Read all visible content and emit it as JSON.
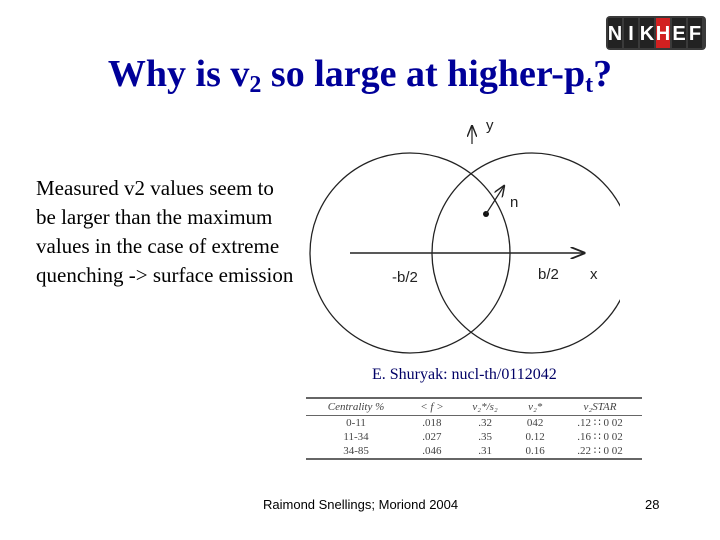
{
  "logo": {
    "text": "NIKHEF",
    "colors": {
      "tile": "#222222",
      "letter": "#ffffff",
      "highlight": "#d22020"
    }
  },
  "slide": {
    "title_main": "Why is v",
    "title_sub": "2",
    "title_mid": " so large at higher-p",
    "title_sub2": "t",
    "title_end": "?",
    "body": "Measured v2 values seem to be larger than the maximum values in the case of extreme quenching -> surface emission",
    "citation": "E. Shuryak: nucl-th/0112042",
    "footer": "Raimond Snellings; Moriond 2004",
    "page_number": "28"
  },
  "diagram": {
    "y_label": "y",
    "x_label": "x",
    "n_label": "n",
    "left_center_label": "-b/2",
    "right_center_label": "b/2"
  },
  "table": {
    "headers": [
      "Centrality %",
      "< f >",
      "v₂*/s₂",
      "v₂*",
      "v₂STAR"
    ],
    "rows": [
      [
        "0-11",
        ".018",
        ".32",
        "042",
        ".12 ∷ 0 02"
      ],
      [
        "11-34",
        ".027",
        ".35",
        "0.12",
        ".16 ∷ 0 02"
      ],
      [
        "34-85",
        ".046",
        ".31",
        "0.16",
        ".22 ∷ 0 02"
      ]
    ]
  },
  "colors": {
    "title": "#000099",
    "citation": "#000066"
  }
}
